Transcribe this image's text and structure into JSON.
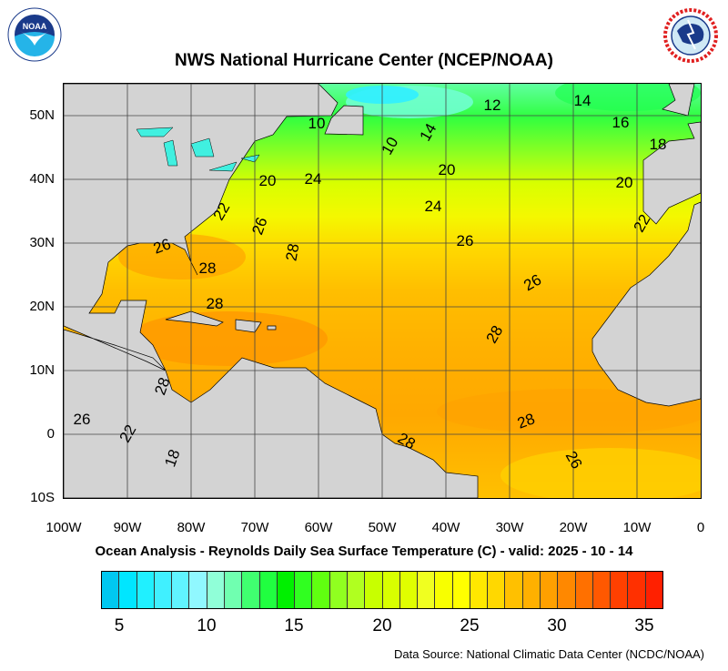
{
  "title": "NWS National Hurricane Center (NCEP/NOAA)",
  "logos": {
    "left": "NOAA",
    "right": "NATIONAL WEATHER SERVICE"
  },
  "subtitle": "Ocean Analysis - Reynolds Daily Sea Surface Temperature (C) - valid: 2025 - 10 - 14",
  "source": "Data Source: National Climatic Data Center (NCDC/NOAA)",
  "map": {
    "region": "Atlantic Ocean",
    "lon_range": [
      -100,
      0
    ],
    "lat_range": [
      -10,
      55
    ],
    "land_color": "#d3d3d3",
    "lat_labels": [
      "50N",
      "40N",
      "30N",
      "20N",
      "10N",
      "0",
      "10S"
    ],
    "lon_labels": [
      "100W",
      "90W",
      "80W",
      "70W",
      "60W",
      "50W",
      "40W",
      "30W",
      "20W",
      "10W",
      "0"
    ],
    "contour_labels": [
      "12",
      "14",
      "16",
      "18",
      "10",
      "10",
      "14",
      "20",
      "20",
      "24",
      "20",
      "24",
      "22",
      "26",
      "26",
      "22",
      "26",
      "28",
      "28",
      "26",
      "28",
      "28",
      "28",
      "26",
      "22",
      "28",
      "28",
      "26",
      "18"
    ]
  },
  "colorbar": {
    "unit": "C",
    "labels": [
      "5",
      "10",
      "15",
      "20",
      "25",
      "30",
      "35"
    ],
    "colors": [
      "#00c8f0",
      "#00e6ff",
      "#20f0ff",
      "#40f0ff",
      "#60f4ff",
      "#90f8ff",
      "#90ffd8",
      "#70ffb0",
      "#40ff70",
      "#20ff40",
      "#00f000",
      "#30ff20",
      "#60ff10",
      "#90ff20",
      "#b0ff20",
      "#c8ff00",
      "#d8ff00",
      "#e0ff00",
      "#f0ff20",
      "#f8ff00",
      "#ffff00",
      "#ffe800",
      "#ffd800",
      "#ffc000",
      "#ffb000",
      "#ffa000",
      "#ff8800",
      "#ff7000",
      "#ff5800",
      "#ff4000",
      "#ff3000",
      "#ff2000"
    ]
  }
}
